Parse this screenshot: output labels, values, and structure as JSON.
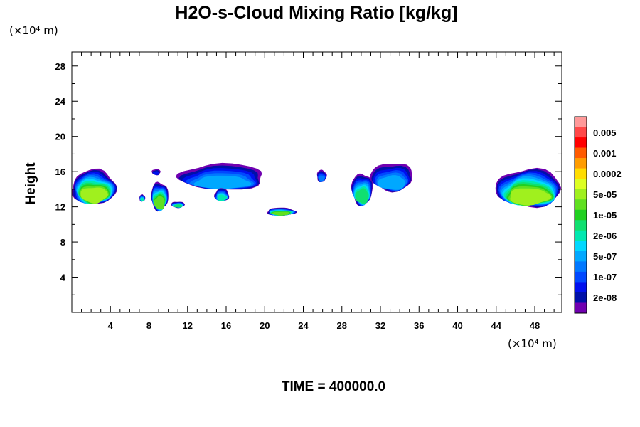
{
  "chart_data": {
    "type": "heatmap",
    "title": "H2O-s-Cloud Mixing Ratio [kg/kg]",
    "xlabel": "",
    "ylabel": "Height",
    "x_unit_label": "(×10⁴ m)",
    "y_unit_label": "(×10⁴ m)",
    "xlim": [
      0,
      50.8
    ],
    "ylim": [
      0,
      29.6
    ],
    "x_ticks": [
      4,
      8,
      12,
      16,
      20,
      24,
      28,
      32,
      36,
      40,
      44,
      48
    ],
    "x_tick_labels": [
      "4",
      "8",
      "12",
      "16",
      "20",
      "24",
      "28",
      "32",
      "36",
      "40",
      "44",
      "48"
    ],
    "y_ticks": [
      4,
      8,
      12,
      16,
      20,
      24,
      28
    ],
    "y_tick_labels": [
      "4",
      "8",
      "12",
      "16",
      "20",
      "24",
      "28"
    ],
    "grid": false,
    "footer": "TIME = 400000.0",
    "colorbar": {
      "labels": [
        "0.005",
        "0.001",
        "0.0002",
        "5e-05",
        "1e-05",
        "2e-06",
        "5e-07",
        "1e-07",
        "2e-08"
      ],
      "colors": [
        "#ff9999",
        "#ff4848",
        "#ff0000",
        "#ff5a00",
        "#ff9c00",
        "#ffdd00",
        "#ddff22",
        "#a0f01e",
        "#60e020",
        "#20d020",
        "#10e070",
        "#00e8b0",
        "#00d8ff",
        "#00a8ff",
        "#0078ff",
        "#0048ff",
        "#0010ee",
        "#0010a8",
        "#7000b0"
      ]
    },
    "cloud_regions": [
      {
        "x0": 0.0,
        "x1": 4.6,
        "ybot": 12.3,
        "ytop": 16.2,
        "level": 0.9
      },
      {
        "x0": 7.0,
        "x1": 7.6,
        "ybot": 12.6,
        "ytop": 13.4,
        "level": 0.55
      },
      {
        "x0": 8.2,
        "x1": 10.0,
        "ybot": 11.6,
        "ytop": 14.8,
        "level": 0.85
      },
      {
        "x0": 10.3,
        "x1": 11.7,
        "ybot": 11.9,
        "ytop": 12.6,
        "level": 0.65
      },
      {
        "x0": 8.3,
        "x1": 9.2,
        "ybot": 15.6,
        "ytop": 16.3,
        "level": 0.15
      },
      {
        "x0": 11.2,
        "x1": 20.0,
        "ybot": 13.9,
        "ytop": 16.9,
        "level": 0.45
      },
      {
        "x0": 14.8,
        "x1": 16.3,
        "ybot": 12.6,
        "ytop": 14.1,
        "level": 0.6
      },
      {
        "x0": 20.2,
        "x1": 23.2,
        "ybot": 11.0,
        "ytop": 11.9,
        "level": 0.8
      },
      {
        "x0": 25.4,
        "x1": 26.4,
        "ybot": 14.8,
        "ytop": 16.2,
        "level": 0.3
      },
      {
        "x0": 29.0,
        "x1": 31.2,
        "ybot": 12.2,
        "ytop": 15.8,
        "level": 0.7
      },
      {
        "x0": 31.0,
        "x1": 35.4,
        "ybot": 13.8,
        "ytop": 17.0,
        "level": 0.45
      },
      {
        "x0": 44.0,
        "x1": 50.8,
        "ybot": 12.0,
        "ytop": 16.3,
        "level": 0.88
      }
    ]
  }
}
